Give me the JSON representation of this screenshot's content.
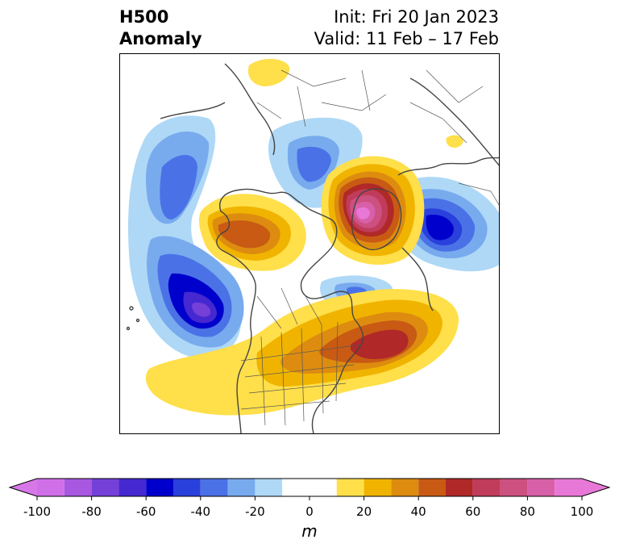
{
  "title": {
    "line1_left": "H500",
    "line2_left": "Anomaly",
    "line1_right": "Init: Fri 20 Jan 2023",
    "line2_right": "Valid: 11 Feb – 17 Feb"
  },
  "colorbar": {
    "unit": "m",
    "ticks": [
      "-100",
      "-80",
      "-60",
      "-40",
      "-20",
      "0",
      "20",
      "40",
      "60",
      "80",
      "100"
    ],
    "tick_values": [
      -100,
      -80,
      -60,
      -40,
      -20,
      0,
      20,
      40,
      60,
      80,
      100
    ],
    "levels": [
      -100,
      -90,
      -80,
      -70,
      -60,
      -50,
      -40,
      -30,
      -20,
      -10,
      10,
      20,
      30,
      40,
      50,
      60,
      70,
      80,
      90,
      100
    ],
    "colors": [
      "#d070e8",
      "#a858e0",
      "#7440d8",
      "#4628d0",
      "#0000cc",
      "#2a40dc",
      "#4a72e6",
      "#78aaee",
      "#aed8f6",
      "#ffffff",
      "#ffdf4a",
      "#f0b400",
      "#dd8c10",
      "#c85a14",
      "#b02828",
      "#c03c5a",
      "#cc5080",
      "#d860a8",
      "#e878d8"
    ],
    "extend": "both",
    "under_color": "#d878e8",
    "over_color": "#e878d8"
  },
  "map": {
    "projection": "north-polar stereographic",
    "region": "North America / North Pole"
  }
}
